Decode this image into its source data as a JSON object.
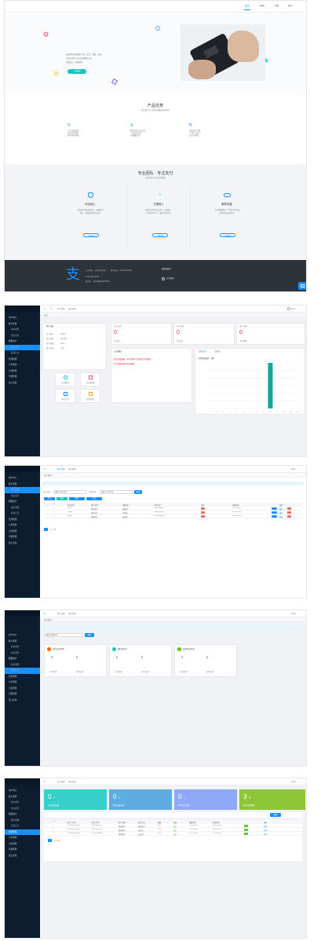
{
  "landing": {
    "nav": [
      "首页",
      "新闻",
      "公告",
      "用户"
    ],
    "hero_text": [
      "欢迎使用支付服务平台，安全、便捷、高效",
      "为商户提供一站式收款解决方案",
      "快速接入，轻松收款"
    ],
    "hero_button": "立即体验",
    "product_title": "产品优势",
    "product_subtitle": "我们致力于为您提供最优质的服务",
    "advantages": [
      {
        "label": "快",
        "lines": [
          "T+0 快速结算",
          "资金实时到账",
          "操作简单便捷"
        ]
      },
      {
        "label": "省",
        "lines": [
          "费率低至行业标准",
          "节省运营成本",
          "无隐藏费用"
        ]
      },
      {
        "label": "稳",
        "lines": [
          "系统稳定可靠",
          "7×24小时运行",
          "安全有保障"
        ]
      }
    ],
    "team_title": "专业团队 · 专注支付",
    "team_subtitle": "为您提供专业的支付服务",
    "features": [
      {
        "title": "安全放心",
        "lines": [
          "采用银行级加密技术，多重安全",
          "防护，保障您的资金安全"
        ],
        "button": "了解更多",
        "color": "#1890ff"
      },
      {
        "title": "方便接入",
        "lines": [
          "提供完善的接口文档，快速接入",
          "多种支付方式，满足不同需求"
        ],
        "button": "了解更多",
        "color": "#13c2c2"
      },
      {
        "title": "服务完善",
        "lines": [
          "专业客服团队，7×24小时在线",
          "及时响应您的需求"
        ],
        "button": "了解更多",
        "color": "#1890ff"
      }
    ],
    "footer_lines": [
      "公司地址：某某市某某区",
      "联系电话：400-000-0000",
      "Copyright©2020",
      "备案号：某ICP备00000000号"
    ],
    "footer_title": "联系我们",
    "footer_link": "在线客服"
  },
  "admin": {
    "menu": [
      "用户中心",
      "账户管理",
      "基本资料",
      "修改密码",
      "数据统计",
      "收款明细",
      "提现记录",
      "结算管理",
      "订单管理",
      "分润管理",
      "代理管理",
      "接口文档"
    ],
    "header_user": "admin",
    "tabs": [
      "首页",
      "用户管理",
      "角色管理"
    ],
    "breadcrumb": "首页",
    "dashboard": {
      "info_title": "用户信息",
      "info_rows": [
        [
          "商户编号",
          "10001"
        ],
        [
          "商户名称",
          "测试商户"
        ],
        [
          "商户费率",
          "0.6%"
        ],
        [
          "账户状态",
          "正常"
        ]
      ],
      "quick_links": [
        "在线充值",
        "收款明细",
        "我的订单",
        "我的提现"
      ],
      "stat_cards": [
        {
          "title": "今日交易",
          "value": "0",
          "sub": "今日收入"
        },
        {
          "title": "昨日交易",
          "value": "0",
          "sub": "昨日收入"
        },
        {
          "title": "账户余额",
          "value": "0",
          "sub": "可用余额"
        }
      ],
      "notice_title": "公告通知",
      "notices": [
        "系统升级通知：本系统将于近期进行升级维护",
        "关于调整结算时间的通知"
      ],
      "chart_tabs": [
        "近期交易",
        "近期收入"
      ],
      "chart_label": "近期交易统计（笔）"
    },
    "users": {
      "breadcrumb": "用户管理",
      "search_label1": "用户名称",
      "search_placeholder1": "请输入用户名称",
      "search_label2": "手机号码",
      "search_placeholder2": "请输入手机号码",
      "search_button": "搜索",
      "buttons": [
        "新增",
        "修改",
        "删除",
        "导出"
      ],
      "columns": [
        "",
        "ID",
        "用户编号",
        "用户名称",
        "所属部门",
        "手机号码",
        "状态",
        "创建时间",
        "操作"
      ],
      "rows": [
        [
          "",
          "1",
          "10001",
          "测试用户",
          "研发部",
          "13800000000",
          "",
          "2021-06-01",
          "编辑"
        ],
        [
          "",
          "2",
          "10002",
          "演示用户",
          "市场部",
          "13900000000",
          "",
          "2021-06-02",
          "编辑"
        ],
        [
          "",
          "3",
          "10003",
          "普通用户",
          "运营部",
          "13700000000",
          "",
          "2021-06-03",
          "编辑"
        ]
      ],
      "pager": "共 3 条"
    },
    "channels": {
      "breadcrumb": "通道配置",
      "search_placeholder": "请输入通道名称",
      "search_button": "搜索",
      "cards": [
        {
          "title": "支付宝支付(2)",
          "color": "#ff6a00",
          "a": "0",
          "b": "0",
          "btns": [
            "开通管理",
            "费率设置"
          ]
        },
        {
          "title": "微信支付(1)",
          "color": "#13c2c2",
          "a": "0",
          "b": "0",
          "btns": [
            "开通管理",
            "费率设置"
          ]
        },
        {
          "title": "云闪付支付(1)",
          "color": "#52c41a",
          "a": "0",
          "b": "0",
          "btns": [
            "开通管理",
            "费率设置"
          ]
        }
      ]
    },
    "orders": {
      "tiles": [
        {
          "value": "0",
          "unit": "元",
          "label": "今日交易金额",
          "color": "#36cfc9"
        },
        {
          "value": "0",
          "unit": "元",
          "label": "昨日交易金额",
          "color": "#5dade2"
        },
        {
          "value": "0",
          "unit": "元",
          "label": "本月交易金额",
          "color": "#8fa8f7"
        },
        {
          "value": "3",
          "unit": "笔",
          "label": "累计交易笔数",
          "color": "#8fc639"
        }
      ],
      "search_button": "搜索",
      "columns": [
        "ID",
        "商户订单号",
        "平台订单号",
        "商户名称",
        "支付方式",
        "金额",
        "状态",
        "创建时间",
        "回调时间",
        "操作"
      ],
      "rows": [
        [
          "1",
          "2021060100001",
          "P20210601001",
          "测试商户",
          "微信支付",
          "1.00",
          "成功",
          "2021-06-01",
          "2021-06-01",
          "补单"
        ],
        [
          "2",
          "2021060100002",
          "P20210601002",
          "测试商户",
          "支付宝",
          "2.00",
          "成功",
          "2021-06-01",
          "2021-06-01",
          "补单"
        ],
        [
          "3",
          "2021060100003",
          "P20210601003",
          "测试商户",
          "云闪付",
          "3.00",
          "成功",
          "2021-06-01",
          "2021-06-01",
          "补单"
        ]
      ],
      "pager": "共 3 条"
    }
  },
  "chart_data": {
    "type": "bar",
    "categories": [
      "1",
      "2",
      "3",
      "4",
      "5",
      "6",
      "7",
      "8",
      "9",
      "10",
      "11",
      "12",
      "13",
      "14"
    ],
    "values": [
      0,
      0,
      0,
      0,
      0,
      0,
      0,
      0,
      0,
      3,
      0,
      0,
      0,
      0
    ],
    "ylim": [
      0,
      3
    ]
  },
  "colors": {
    "accent": "#1890ff",
    "sidebar": "#0d1c2e",
    "footer": "#2e3339"
  }
}
